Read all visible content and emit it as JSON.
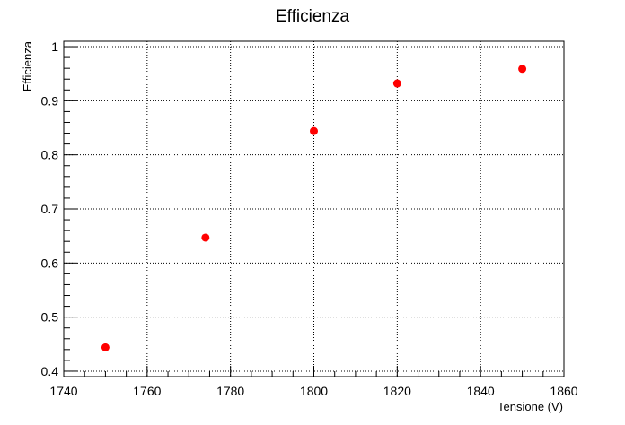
{
  "chart_data": {
    "type": "scatter",
    "title": "Efficienza",
    "xlabel": "Tensione (V)",
    "ylabel": "Efficienza",
    "xlim": [
      1740,
      1860
    ],
    "ylim": [
      0.39,
      1.01
    ],
    "xticks": [
      1740,
      1760,
      1780,
      1800,
      1820,
      1840,
      1860
    ],
    "yticks": [
      0.4,
      0.5,
      0.6,
      0.7,
      0.8,
      0.9,
      1
    ],
    "ytick_labels": [
      "0.4",
      "0.5",
      "0.6",
      "0.7",
      "0.8",
      "0.9",
      "1"
    ],
    "grid": true,
    "marker_color": "#ff0000",
    "series": [
      {
        "x": [
          1750,
          1774,
          1800,
          1820,
          1850
        ],
        "y": [
          0.444,
          0.647,
          0.844,
          0.932,
          0.959
        ]
      }
    ]
  }
}
